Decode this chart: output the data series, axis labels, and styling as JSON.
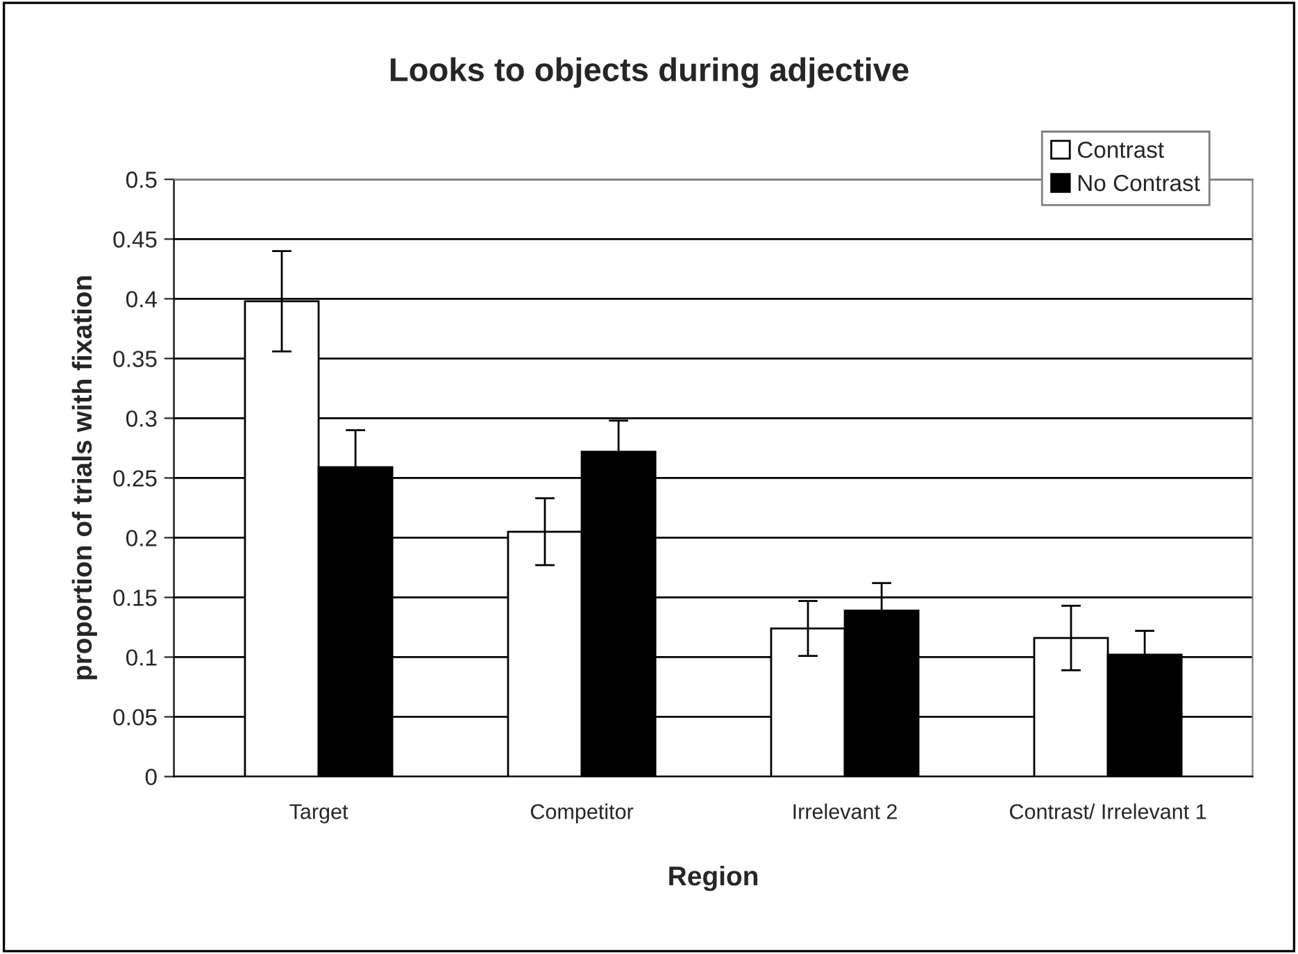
{
  "chart_data": {
    "type": "bar",
    "title": "Looks to objects during adjective",
    "xlabel": "Region",
    "ylabel": "proportion of trials with fixation",
    "categories": [
      "Target",
      "Competitor",
      "Irrelevant 2",
      "Contrast/ Irrelevant 1"
    ],
    "series": [
      {
        "name": "Contrast",
        "color": "#ffffff",
        "values": [
          0.398,
          0.205,
          0.124,
          0.116
        ],
        "errors": [
          0.042,
          0.028,
          0.023,
          0.027
        ]
      },
      {
        "name": "No Contrast",
        "color": "#000000",
        "values": [
          0.259,
          0.272,
          0.139,
          0.102
        ],
        "errors": [
          0.031,
          0.026,
          0.023,
          0.02
        ]
      }
    ],
    "ylim": [
      0,
      0.5
    ],
    "yticks": [
      0,
      0.05,
      0.1,
      0.15,
      0.2,
      0.25,
      0.3,
      0.35,
      0.4,
      0.45,
      0.5
    ],
    "grid": "y",
    "legend": "top right"
  }
}
